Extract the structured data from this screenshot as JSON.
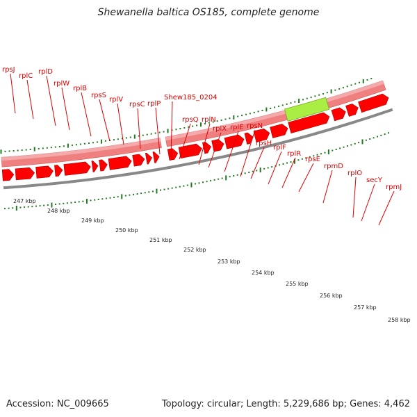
{
  "title": "Shewanella baltica OS185, complete genome",
  "footer": {
    "accession": "Accession: NC_009665",
    "stats": "Topology: circular; Length: 5,229,686 bp; Genes: 4,462"
  },
  "colors": {
    "gene": "#ff0000",
    "gene_stroke": "#aa0000",
    "band": "#f08080",
    "band_light": "#f4aaaa",
    "highlight": "#aaee44",
    "tick": "#227722",
    "label": "#dd0000",
    "baseline": "#888888"
  },
  "gene_labels": [
    "rpsJ",
    "rplC",
    "rplD",
    "rplW",
    "rplB",
    "rpsS",
    "rplV",
    "rpsC",
    "rplP",
    "Shew185_0204",
    "rpsQ",
    "rplN",
    "rplX",
    "rplE",
    "rpsN",
    "rpsH",
    "rplF",
    "rplR",
    "rpsE",
    "rpmD",
    "rplO",
    "secY",
    "rpmJ"
  ],
  "highlighted_gene": "secY",
  "kbp_labels": [
    "247 kbp",
    "248 kbp",
    "249 kbp",
    "250 kbp",
    "251 kbp",
    "252 kbp",
    "253 kbp",
    "254 kbp",
    "255 kbp",
    "256 kbp",
    "257 kbp",
    "258 kbp"
  ]
}
